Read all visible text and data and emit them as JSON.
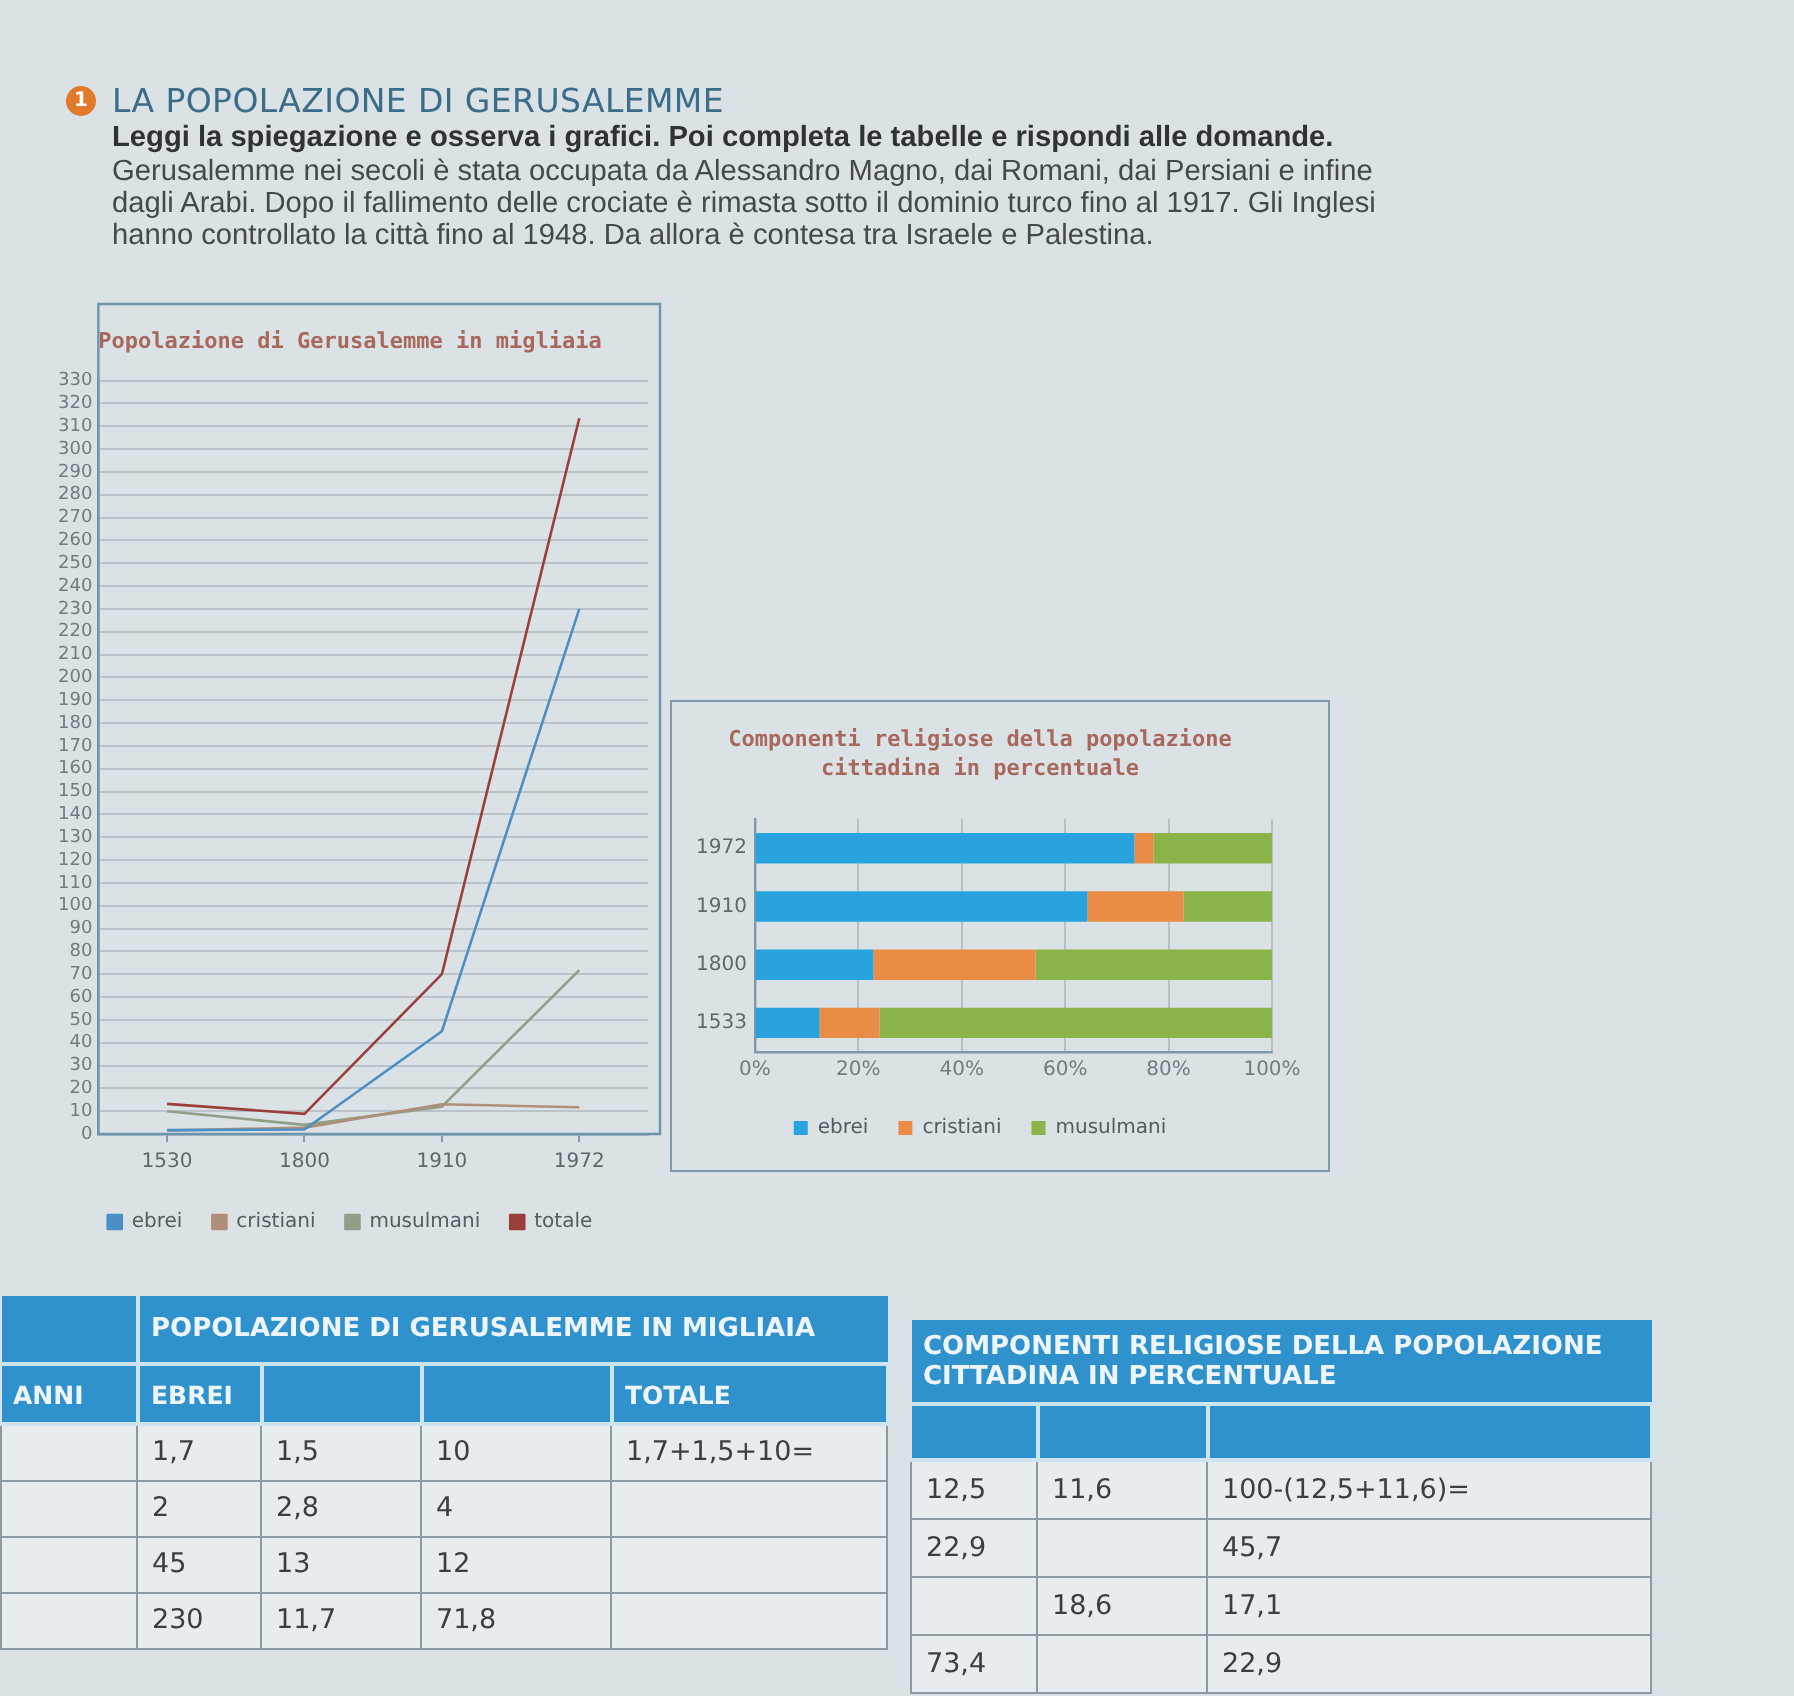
{
  "chart_data": [
    {
      "type": "other",
      "title": "LA POPOLAZIONE DI GERUSALEMME",
      "subtitle": "Leggi la spiegazione e osserva i grafici. Poi completa le tabelle e rispondi alle domande.",
      "annotations": [
        "1",
        "Gerusalemme nei secoli è stata occupata da Alessandro Magno, dai Romani, dai Persiani e infine dagli Arabi. Dopo il fallimento delle crociate è rimasta sotto il dominio turco fino al 1917. Gli Inglesi hanno controllato la città fino al 1948. Da allora è contesa tra Israele e Palestina."
      ]
    },
    {
      "type": "line",
      "title": "Popolazione di Gerusalemme in migliaia",
      "categories": [
        "1530",
        "1800",
        "1910",
        "1972"
      ],
      "series": [
        {
          "name": "ebrei",
          "color": "#4b8fc4",
          "values": [
            1.7,
            2,
            45,
            230
          ]
        },
        {
          "name": "cristiani",
          "color": "#b08f7a",
          "values": [
            1.5,
            2.8,
            13,
            11.7
          ]
        },
        {
          "name": "musulmani",
          "color": "#8f9f88",
          "values": [
            10,
            4,
            12,
            71.8
          ]
        },
        {
          "name": "totale",
          "color": "#9a3f3a",
          "values": [
            13.2,
            8.8,
            70,
            313.5
          ]
        }
      ],
      "ylim": [
        0,
        330
      ],
      "yticks": [
        0,
        10,
        20,
        30,
        40,
        50,
        60,
        70,
        80,
        90,
        100,
        110,
        120,
        130,
        140,
        150,
        160,
        170,
        180,
        190,
        200,
        210,
        220,
        230,
        240,
        250,
        260,
        270,
        280,
        290,
        300,
        310,
        320,
        330
      ],
      "grid": "y",
      "legend": "bottom",
      "marker": "none"
    },
    {
      "type": "bar",
      "orientation": "horizontal",
      "stacked": true,
      "title": "Componenti religiose della popolazione cittadina in percentuale",
      "categories": [
        "1972",
        "1910",
        "1800",
        "1533"
      ],
      "series": [
        {
          "name": "ebrei",
          "color": "#29a3dd",
          "values": [
            73.4,
            64.3,
            22.9,
            12.5
          ]
        },
        {
          "name": "cristiani",
          "color": "#e98c45",
          "values": [
            3.7,
            18.6,
            31.4,
            11.6
          ]
        },
        {
          "name": "musulmani",
          "color": "#8ab44a",
          "values": [
            22.9,
            17.1,
            45.7,
            75.9
          ]
        }
      ],
      "xlim": [
        0,
        100
      ],
      "xticks": [
        {
          "value": 0,
          "label": "0%"
        },
        {
          "value": 20,
          "label": "20%"
        },
        {
          "value": 40,
          "label": "40%"
        },
        {
          "value": 60,
          "label": "60%"
        },
        {
          "value": 80,
          "label": "80%"
        },
        {
          "value": 100,
          "label": "100%"
        }
      ],
      "grid": "x",
      "legend": "bottom"
    },
    {
      "type": "other",
      "title": "POPOLAZIONE DI GERUSALEMME IN MIGLIAIA",
      "categories": [
        "ANNI",
        "EBREI",
        null,
        null,
        "TOTALE"
      ],
      "cell_labels": [
        [
          null,
          "1,7",
          "1,5",
          "10",
          "1,7+1,5+10="
        ],
        [
          null,
          "2",
          "2,8",
          "4",
          null
        ],
        [
          null,
          "45",
          "13",
          "12",
          null
        ],
        [
          null,
          "230",
          "11,7",
          "71,8",
          null
        ]
      ]
    },
    {
      "type": "other",
      "title": "COMPONENTI RELIGIOSE DELLA POPOLAZIONE CITTADINA IN PERCENTUALE",
      "categories": [
        null,
        null,
        null
      ],
      "cell_labels": [
        [
          "12,5",
          "11,6",
          "100-(12,5+11,6)="
        ],
        [
          "22,9",
          null,
          "45,7"
        ],
        [
          null,
          "18,6",
          "17,1"
        ],
        [
          "73,4",
          null,
          "22,9"
        ]
      ]
    }
  ]
}
